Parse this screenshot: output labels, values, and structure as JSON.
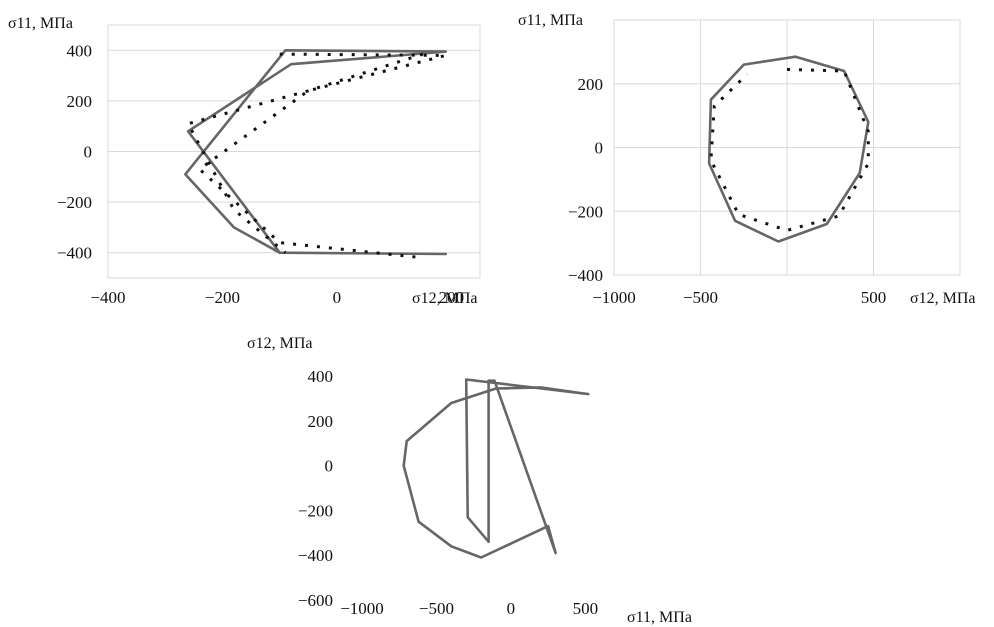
{
  "chart_data": [
    {
      "type": "line",
      "title": "",
      "xlabel": "σ12, МПа",
      "ylabel": "σ11, МПа",
      "xlim": [
        -400,
        250
      ],
      "ylim": [
        -500,
        500
      ],
      "x_ticks": [
        "−400",
        "−200",
        "0",
        "200"
      ],
      "y_ticks": [
        "400",
        "200",
        "0",
        "−200",
        "−400"
      ],
      "grid": true,
      "series": [
        {
          "style": "solid",
          "x": [
            -90,
            190,
            -80,
            -260,
            -100,
            190,
            -100,
            -180,
            -265,
            -90
          ],
          "y": [
            400,
            395,
            345,
            80,
            -400,
            -405,
            -400,
            -300,
            -90,
            400
          ]
        },
        {
          "style": "dashed",
          "x": [
            -100,
            190,
            -50,
            -240,
            -100,
            150
          ],
          "y": [
            385,
            380,
            240,
            -70,
            -360,
            -420
          ]
        },
        {
          "style": "dashed",
          "x": [
            150,
            -50,
            -260,
            -180,
            -90
          ],
          "y": [
            385,
            240,
            110,
            -230,
            -400
          ]
        }
      ]
    },
    {
      "type": "line",
      "title": "",
      "xlabel": "σ12, МПа",
      "ylabel": "σ11, МПа",
      "xlim": [
        -1000,
        1000
      ],
      "ylim": [
        -400,
        400
      ],
      "x_ticks": [
        "−1000",
        "−500",
        "500"
      ],
      "y_ticks": [
        "200",
        "0",
        "−200",
        "−400"
      ],
      "grid": true,
      "series": [
        {
          "style": "solid",
          "x": [
            50,
            330,
            470,
            420,
            230,
            -50,
            -300,
            -450,
            -440,
            -250
          ],
          "y": [
            285,
            240,
            80,
            -80,
            -240,
            -295,
            -230,
            -50,
            150,
            260
          ]
        },
        {
          "style": "dashed",
          "x": [
            0,
            330,
            470,
            470,
            300,
            0,
            -280,
            -440,
            -420,
            -230
          ],
          "y": [
            245,
            240,
            50,
            -50,
            -215,
            -260,
            -210,
            -40,
            130,
            230
          ]
        }
      ]
    },
    {
      "type": "line",
      "title": "",
      "xlabel": "σ11, МПа",
      "ylabel": "σ12, МПа",
      "xlim": [
        -1000,
        800
      ],
      "ylim": [
        -600,
        450
      ],
      "x_ticks": [
        "−1000",
        "−500",
        "0",
        "500"
      ],
      "y_ticks": [
        "400",
        "200",
        "0",
        "−200",
        "−400",
        "−600"
      ],
      "grid": false,
      "series": [
        {
          "style": "solid",
          "x": [
            520,
            -300,
            -290,
            -150,
            -150,
            -110,
            300,
            250,
            -200,
            -400,
            -620,
            -720,
            -700,
            -400,
            -100,
            200,
            520
          ],
          "y": [
            320,
            385,
            -230,
            -340,
            380,
            380,
            -390,
            -270,
            -410,
            -360,
            -250,
            0,
            110,
            280,
            345,
            350,
            320
          ]
        }
      ]
    }
  ]
}
